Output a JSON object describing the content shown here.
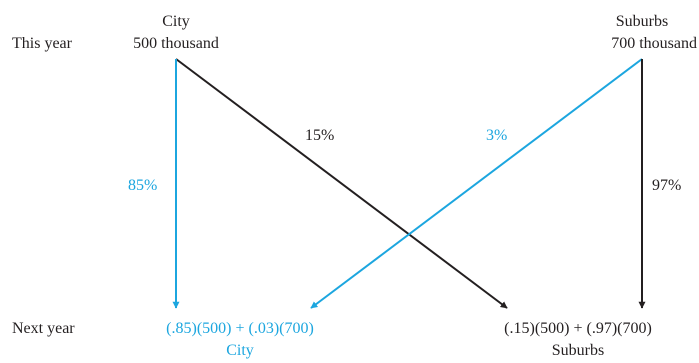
{
  "row_labels": {
    "this_year": "This year",
    "next_year": "Next year"
  },
  "top": {
    "city": {
      "name": "City",
      "population": "500 thousand"
    },
    "suburbs": {
      "name": "Suburbs",
      "population": "700 thousand"
    }
  },
  "flows": {
    "city_stay": "85%",
    "city_to_suburbs": "15%",
    "suburbs_to_city": "3%",
    "suburbs_stay": "97%"
  },
  "bottom": {
    "city": {
      "expression": "(.85)(500) + (.03)(700)",
      "name": "City"
    },
    "suburbs": {
      "expression": "(.15)(500) + (.97)(700)",
      "name": "Suburbs"
    }
  },
  "colors": {
    "blue": "#1ca6df",
    "black": "#231f20"
  }
}
